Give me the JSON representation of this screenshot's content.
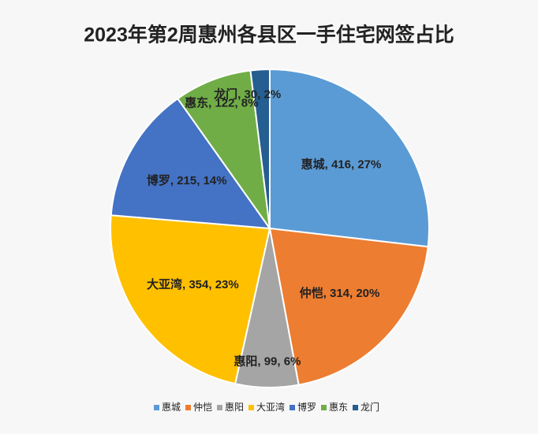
{
  "chart_data": {
    "type": "pie",
    "title": "2023年第2周惠州各县区一手住宅网签占比",
    "categories": [
      "惠城",
      "仲恺",
      "惠阳",
      "大亚湾",
      "博罗",
      "惠东",
      "龙门"
    ],
    "values": [
      416,
      314,
      99,
      354,
      215,
      122,
      30
    ],
    "value_labels": [
      "惠城, 416, 27%",
      "仲恺, 314, 20%",
      "惠阳, 99, 6%",
      "大亚湾, 354, 23%",
      "博罗, 215, 14%",
      "惠东, 122, 8%",
      "龙门, 30, 2%"
    ],
    "colors": [
      "#5b9bd5",
      "#ed7d31",
      "#a5a5a5",
      "#ffc000",
      "#4472c4",
      "#70ad47",
      "#255e91"
    ],
    "legend": "bottom"
  }
}
